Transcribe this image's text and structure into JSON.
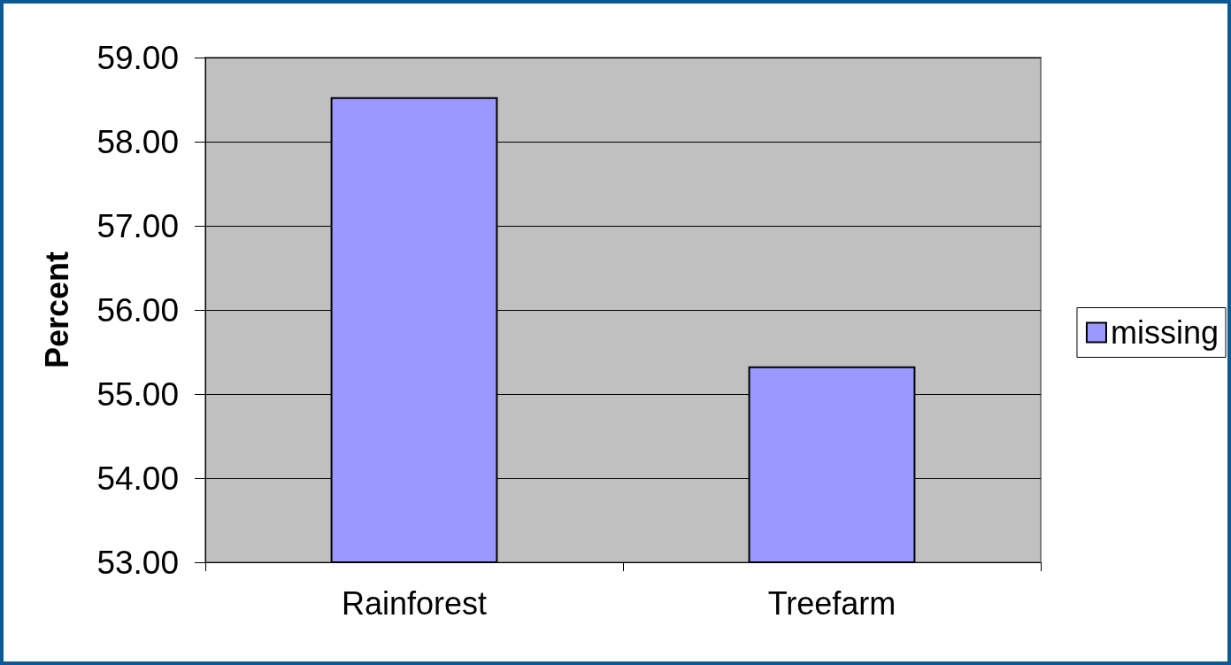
{
  "chart_data": {
    "type": "bar",
    "ylabel": "Percent",
    "categories": [
      "Rainforest",
      "Treefarm"
    ],
    "series": [
      {
        "name": "missing",
        "color": "#9999ff",
        "values": [
          58.53,
          55.33
        ]
      }
    ],
    "ylim": [
      53,
      59
    ],
    "yticks": [
      {
        "value": 53,
        "label": "53.00"
      },
      {
        "value": 54,
        "label": "54.00"
      },
      {
        "value": 55,
        "label": "55.00"
      },
      {
        "value": 56,
        "label": "56.00"
      },
      {
        "value": 57,
        "label": "57.00"
      },
      {
        "value": 58,
        "label": "58.00"
      },
      {
        "value": 59,
        "label": "59.00"
      }
    ],
    "grid": "y",
    "legend": "right"
  }
}
